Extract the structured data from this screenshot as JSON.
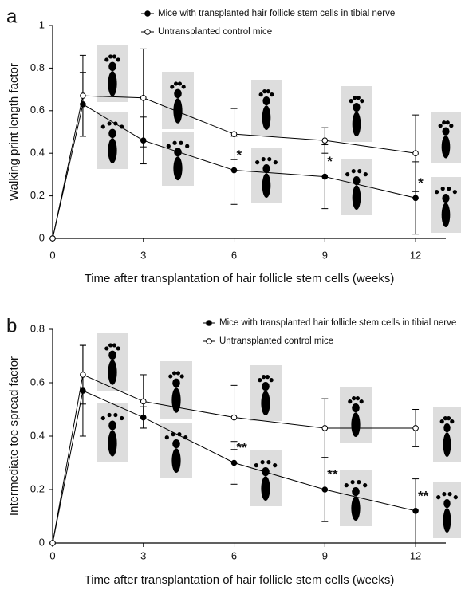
{
  "chart_data": [
    {
      "type": "line",
      "panel": "a",
      "x": [
        0,
        1,
        3,
        6,
        9,
        12
      ],
      "xlabel": "Time after transplantation of hair follicle stem cells (weeks)",
      "ylabel": "Walking print length factor",
      "xlim": [
        0,
        13
      ],
      "xticks": [
        0,
        3,
        6,
        9,
        12
      ],
      "ylim": [
        0,
        1
      ],
      "yticks": [
        0,
        0.2,
        0.4,
        0.6,
        0.8,
        1
      ],
      "series": [
        {
          "name": "Mice with transplanted hair follicle stem cells in tibial nerve",
          "color": "#000000",
          "marker": "filled",
          "values": [
            0,
            0.63,
            0.46,
            0.32,
            0.29,
            0.19
          ],
          "errors": [
            0,
            0.15,
            0.11,
            0.16,
            0.15,
            0.17
          ]
        },
        {
          "name": "Untransplanted control mice",
          "color": "#000000",
          "marker": "open",
          "values": [
            0,
            0.67,
            0.66,
            0.49,
            0.46,
            0.4
          ],
          "errors": [
            0,
            0.19,
            0.23,
            0.12,
            0.06,
            0.18
          ]
        }
      ],
      "annotations": [
        {
          "text": "*",
          "x": 6
        },
        {
          "text": "*",
          "x": 9
        },
        {
          "text": "*",
          "x": 12
        }
      ]
    },
    {
      "type": "line",
      "panel": "b",
      "x": [
        0,
        1,
        3,
        6,
        9,
        12
      ],
      "xlabel": "Time after transplantation of hair follicle stem cells (weeks)",
      "ylabel": "Intermediate toe spread factor",
      "xlim": [
        0,
        13
      ],
      "xticks": [
        0,
        3,
        6,
        9,
        12
      ],
      "ylim": [
        0,
        0.8
      ],
      "yticks": [
        0,
        0.2,
        0.4,
        0.6,
        0.8
      ],
      "series": [
        {
          "name": "Mice with transplanted hair follicle stem cells in tibial nerve",
          "color": "#000000",
          "marker": "filled",
          "values": [
            0,
            0.57,
            0.47,
            0.3,
            0.2,
            0.12
          ],
          "errors": [
            0,
            0.17,
            0.04,
            0.08,
            0.12,
            0.12
          ]
        },
        {
          "name": "Untransplanted control mice",
          "color": "#000000",
          "marker": "open",
          "values": [
            0,
            0.63,
            0.53,
            0.47,
            0.43,
            0.43
          ],
          "errors": [
            0,
            0.11,
            0.1,
            0.12,
            0.11,
            0.07
          ]
        }
      ],
      "annotations": [
        {
          "text": "**",
          "x": 6
        },
        {
          "text": "**",
          "x": 9
        },
        {
          "text": "**",
          "x": 12
        }
      ]
    }
  ]
}
